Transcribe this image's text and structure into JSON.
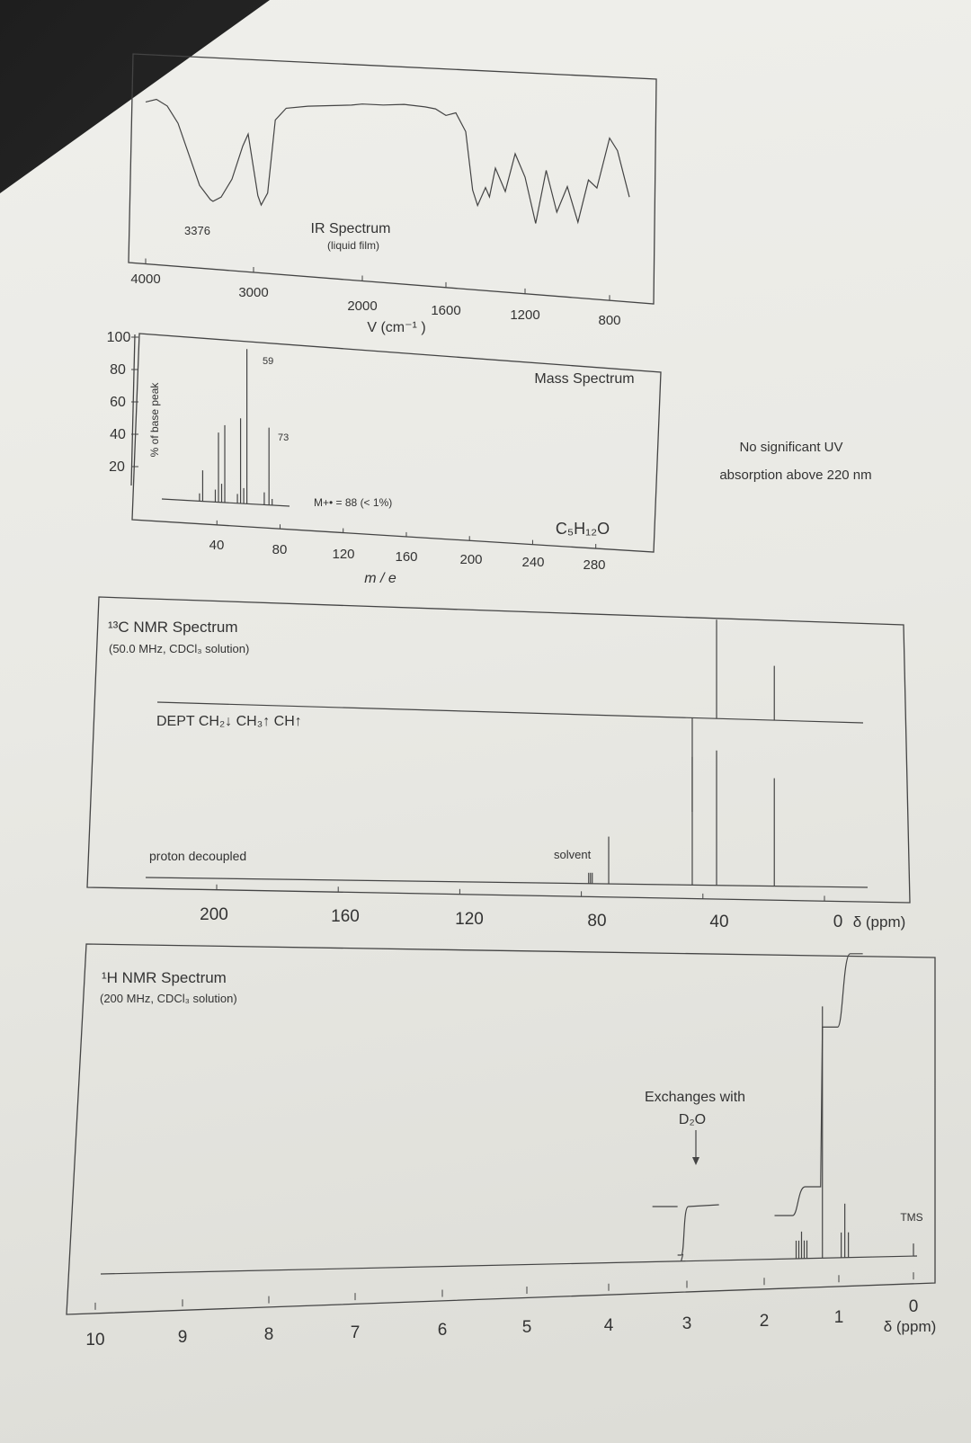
{
  "ir": {
    "title": "IR Spectrum",
    "subtitle": "(liquid film)",
    "peak_label": "3376",
    "xlabel": "V (cm⁻¹ )",
    "ticks": [
      "4000",
      "3000",
      "2000",
      "1600",
      "1200",
      "800"
    ]
  },
  "ms": {
    "title": "Mass Spectrum",
    "ylabel": "% of base peak",
    "xlabel": "m / e",
    "yticks": [
      "100",
      "80",
      "60",
      "40",
      "20"
    ],
    "xticks": [
      "40",
      "80",
      "120",
      "160",
      "200",
      "240",
      "280"
    ],
    "peak_labels": [
      "59",
      "73"
    ],
    "molecular_ion": "M+• = 88 (< 1%)",
    "formula": "C₅H₁₂O"
  },
  "uv": {
    "line1": "No significant UV",
    "line2": "absorption above 220 nm"
  },
  "c13": {
    "title": "¹³C NMR Spectrum",
    "subtitle": "(50.0 MHz, CDCl₃ solution)",
    "dept_label": "DEPT  CH₂↓  CH₃↑  CH↑",
    "decoupled_label": "proton decoupled",
    "solvent_label": "solvent",
    "ticks": [
      "200",
      "160",
      "120",
      "80",
      "40",
      "0"
    ],
    "axis_label": "δ (ppm)"
  },
  "h1": {
    "title": "¹H NMR Spectrum",
    "subtitle": "(200 MHz, CDCl₃ solution)",
    "exchange_line1": "Exchanges with",
    "exchange_line2": "D₂O",
    "tms_label": "TMS",
    "ticks": [
      "10",
      "9",
      "8",
      "7",
      "6",
      "5",
      "4",
      "3",
      "2",
      "1",
      "0"
    ],
    "axis_label": "δ (ppm)"
  },
  "chart_data": [
    {
      "type": "line",
      "title": "IR Spectrum",
      "subtitle": "(liquid film)",
      "xlabel": "V (cm-1)",
      "xlim": [
        4000,
        600
      ],
      "x_ticks": [
        4000,
        3000,
        2000,
        1600,
        1200,
        800
      ],
      "labeled_peaks": [
        3376
      ],
      "series": [
        {
          "x": [
            4000,
            3900,
            3800,
            3700,
            3600,
            3500,
            3400,
            3376,
            3300,
            3200,
            3100,
            3050,
            2960,
            2930,
            2870,
            2800,
            2700,
            2500,
            2300,
            2100,
            2000,
            1900,
            1800,
            1700,
            1650,
            1600,
            1550,
            1500,
            1465,
            1440,
            1400,
            1380,
            1350,
            1300,
            1250,
            1200,
            1150,
            1100,
            1050,
            1000,
            950,
            900,
            860,
            800,
            760,
            700
          ],
          "y": [
            88,
            90,
            86,
            75,
            55,
            35,
            26,
            25,
            28,
            40,
            62,
            70,
            30,
            24,
            32,
            80,
            88,
            90,
            91,
            92,
            93,
            93,
            94,
            93,
            92,
            88,
            90,
            78,
            40,
            30,
            42,
            36,
            55,
            40,
            65,
            50,
            20,
            55,
            28,
            45,
            22,
            50,
            45,
            78,
            70,
            40
          ]
        }
      ]
    },
    {
      "type": "bar",
      "title": "Mass Spectrum",
      "xlabel": "m / e",
      "ylabel": "% of base peak",
      "xlim": [
        0,
        300
      ],
      "ylim": [
        0,
        100
      ],
      "x_ticks": [
        40,
        80,
        120,
        160,
        200,
        240,
        280
      ],
      "y_ticks": [
        20,
        40,
        60,
        80,
        100
      ],
      "peaks": [
        {
          "mz": 29,
          "value": 5
        },
        {
          "mz": 31,
          "value": 20
        },
        {
          "mz": 39,
          "value": 8
        },
        {
          "mz": 41,
          "value": 45
        },
        {
          "mz": 43,
          "value": 12
        },
        {
          "mz": 45,
          "value": 50
        },
        {
          "mz": 53,
          "value": 6
        },
        {
          "mz": 55,
          "value": 55
        },
        {
          "mz": 57,
          "value": 10
        },
        {
          "mz": 59,
          "value": 100
        },
        {
          "mz": 70,
          "value": 8
        },
        {
          "mz": 73,
          "value": 50
        },
        {
          "mz": 75,
          "value": 4
        }
      ],
      "labeled_peaks": [
        59,
        73
      ],
      "annotations": [
        "M+• = 88 (< 1%)",
        "C5H12O"
      ]
    },
    {
      "type": "bar",
      "title": "13C NMR Spectrum",
      "subtitle": "(50.0 MHz, CDCl3 solution)",
      "xlabel": "δ (ppm)",
      "xlim": [
        220,
        0
      ],
      "x_ticks": [
        200,
        160,
        120,
        80,
        40,
        0
      ],
      "series": [
        {
          "name": "proton decoupled",
          "peaks": [
            {
              "ppm": 71.0,
              "value": 35
            },
            {
              "ppm": 43.5,
              "value": 95
            },
            {
              "ppm": 35.5,
              "value": 100
            },
            {
              "ppm": 16.5,
              "value": 80
            }
          ],
          "solvent_ppm": 77.0
        },
        {
          "name": "DEPT",
          "peaks": [
            {
              "ppm": 43.5,
              "value": -95
            },
            {
              "ppm": 35.5,
              "value": 100
            },
            {
              "ppm": 16.5,
              "value": 55
            }
          ]
        }
      ]
    },
    {
      "type": "line",
      "title": "1H NMR Spectrum",
      "subtitle": "(200 MHz, CDCl3 solution)",
      "xlabel": "δ (ppm)",
      "xlim": [
        10,
        0
      ],
      "x_ticks": [
        10,
        9,
        8,
        7,
        6,
        5,
        4,
        3,
        2,
        1,
        0
      ],
      "signals": [
        {
          "ppm": 3.05,
          "type": "broad singlet",
          "integral": 1,
          "note": "Exchanges with D2O"
        },
        {
          "ppm": 1.5,
          "type": "multiplet",
          "integral": 2
        },
        {
          "ppm": 1.22,
          "type": "singlet",
          "integral": 6
        },
        {
          "ppm": 0.92,
          "type": "triplet",
          "integral": 3
        },
        {
          "ppm": 0.0,
          "type": "singlet",
          "label": "TMS"
        }
      ]
    }
  ]
}
